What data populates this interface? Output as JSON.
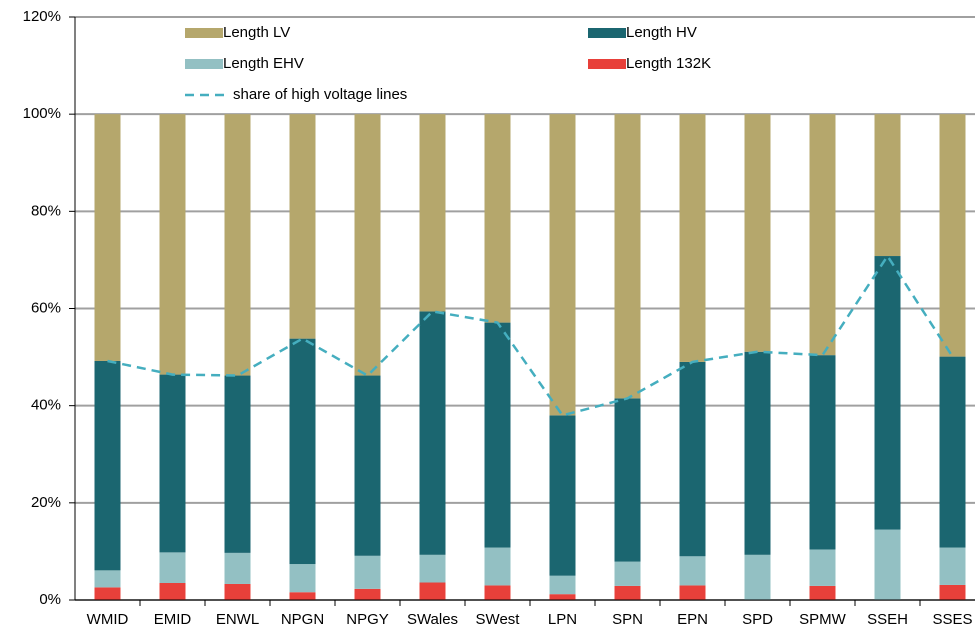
{
  "chart_data": {
    "type": "bar",
    "stacked": true,
    "categories": [
      "WMID",
      "EMID",
      "ENWL",
      "NPGN",
      "NPGY",
      "SWales",
      "SWest",
      "LPN",
      "SPN",
      "EPN",
      "SPD",
      "SPMW",
      "SSEH",
      "SSES"
    ],
    "series": [
      {
        "name": "Length LV",
        "color": "#b5a76c",
        "values": [
          50.8,
          53.6,
          53.8,
          46.2,
          53.8,
          40.6,
          42.9,
          62.0,
          58.5,
          51.0,
          48.9,
          49.6,
          29.2,
          49.9
        ]
      },
      {
        "name": "Length HV",
        "color": "#1b6670",
        "values": [
          43.1,
          36.6,
          36.5,
          46.4,
          37.1,
          50.1,
          46.3,
          33.0,
          33.6,
          40.0,
          41.8,
          40.0,
          56.3,
          39.3
        ]
      },
      {
        "name": "Length EHV",
        "color": "#93c0c3",
        "values": [
          3.5,
          6.3,
          6.4,
          5.8,
          6.8,
          5.7,
          7.8,
          3.8,
          5.0,
          6.0,
          9.3,
          7.5,
          14.5,
          7.7
        ]
      },
      {
        "name": "Length 132K",
        "color": "#e8403a",
        "values": [
          2.6,
          3.5,
          3.3,
          1.6,
          2.3,
          3.6,
          3.0,
          1.2,
          2.9,
          3.0,
          0,
          2.9,
          0,
          3.1
        ]
      },
      {
        "name": "share of high voltage lines",
        "type": "line",
        "dashed": true,
        "color": "#45aebf",
        "values": [
          49.2,
          46.4,
          46.2,
          53.8,
          46.2,
          59.4,
          57.1,
          38.0,
          41.5,
          49.0,
          51.1,
          50.4,
          70.8,
          50.1
        ]
      }
    ],
    "ylim": [
      0,
      120
    ],
    "yticks": [
      {
        "value": 0,
        "label": "0%"
      },
      {
        "value": 20,
        "label": "20%"
      },
      {
        "value": 40,
        "label": "40%"
      },
      {
        "value": 60,
        "label": "60%"
      },
      {
        "value": 80,
        "label": "80%"
      },
      {
        "value": 100,
        "label": "100%"
      },
      {
        "value": 120,
        "label": "120%"
      }
    ],
    "grid": true,
    "legend": "top"
  }
}
